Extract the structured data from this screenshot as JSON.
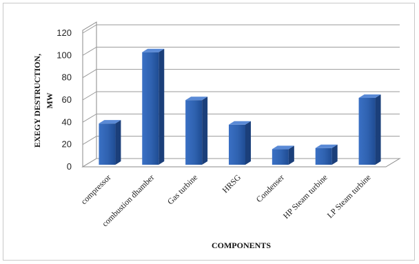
{
  "chart_data": {
    "type": "bar",
    "categories": [
      "compressor",
      "combustion dhamber",
      "Gas turbine",
      "HRSG",
      "Condenser",
      "HP Steam turbine",
      "LP Steam turbine"
    ],
    "values": [
      37,
      101,
      58,
      36,
      14,
      15,
      60
    ],
    "ylim": [
      0,
      120
    ],
    "yticks": [
      0,
      20,
      40,
      60,
      80,
      100,
      120
    ],
    "ylabel_line1": "EXEGY   DESTRUCTION,",
    "ylabel_line2": "MW",
    "xlabel": "COMPONENTS",
    "style": "3d-column",
    "grid": true,
    "legend": "none",
    "colors": {
      "bar_front": "#2f62b0",
      "bar_front_dark": "#1d4a8f",
      "bar_side": "#1b3f7a",
      "bar_top": "#5a8ad6",
      "grid": "#9a9a9a",
      "wall": "#888888"
    }
  }
}
